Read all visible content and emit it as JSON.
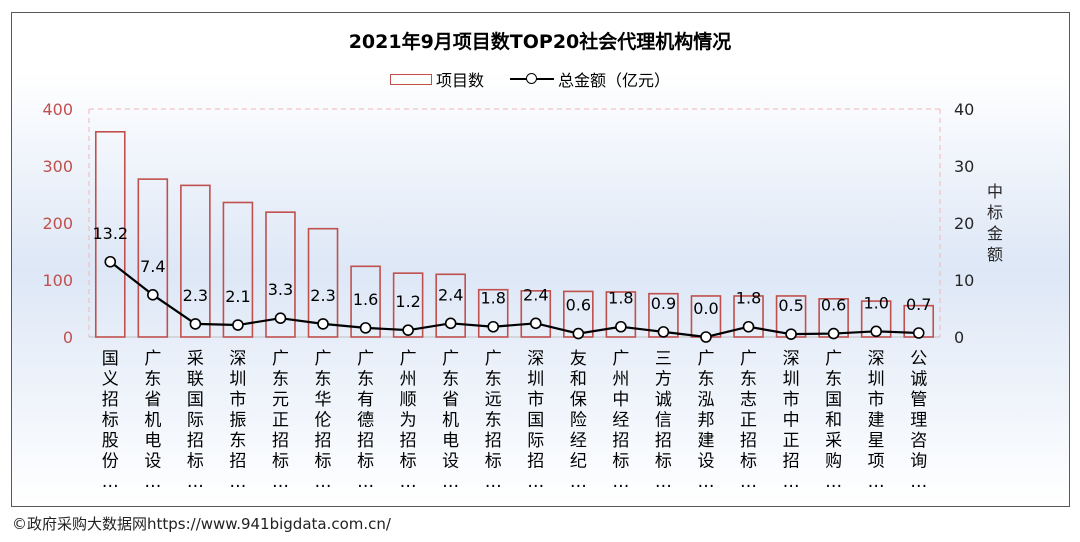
{
  "chart_data": {
    "type": "bar",
    "title": "2021年9月项目数TOP20社会代理机构情况",
    "categories": [
      "国义招标股份…",
      "广东省机电设…",
      "采联国际招标…",
      "深圳市振东招…",
      "广东元正招标…",
      "广东华伦招标…",
      "广东有德招标…",
      "广州顺为招标…",
      "广东省机电设…",
      "广东远东招标…",
      "深圳市国际招…",
      "友和保险经纪…",
      "广州中经招标…",
      "三方诚信招标…",
      "广东泓邦建设…",
      "广东志正招标…",
      "深圳市中正招…",
      "广东国和采购…",
      "深圳市建星项…",
      "公诚管理咨询…"
    ],
    "series": [
      {
        "name": "项目数",
        "type": "bar",
        "axis": "left",
        "values": [
          360,
          277,
          266,
          236,
          219,
          190,
          124,
          112,
          110,
          83,
          81,
          80,
          79,
          76,
          72,
          72,
          72,
          67,
          63,
          55
        ]
      },
      {
        "name": "总金额（亿元）",
        "type": "line",
        "axis": "right",
        "values": [
          13.2,
          7.4,
          2.3,
          2.1,
          3.3,
          2.3,
          1.6,
          1.2,
          2.4,
          1.8,
          2.4,
          0.6,
          1.8,
          0.9,
          0.0,
          1.8,
          0.5,
          0.6,
          1.0,
          0.7
        ],
        "labels": [
          "13.2",
          "7.4",
          "2.3",
          "2.1",
          "3.3",
          "2.3",
          "1.6",
          "1.2",
          "2.4",
          "1.8",
          "2.4",
          "0.6",
          "1.8",
          "0.9",
          "0.0",
          "1.8",
          "0.5",
          "0.6",
          "1.0",
          "0.7"
        ]
      }
    ],
    "ylim": [
      0,
      400
    ],
    "y2lim": [
      0,
      40
    ],
    "yticks": [
      "0",
      "100",
      "200",
      "300",
      "400"
    ],
    "y2ticks": [
      "0",
      "10",
      "20",
      "30",
      "40"
    ],
    "y2label": "中标金额",
    "legend_position": "top",
    "colors": {
      "bar_edge": "#c0504d",
      "line": "#000000",
      "left_axis_text": "#c0504d",
      "gridline": "#f4b6b6"
    }
  },
  "legend": {
    "bar": "项目数",
    "line": "总金额（亿元）"
  },
  "credit": "©政府采购大数据网https://www.941bigdata.com.cn/"
}
